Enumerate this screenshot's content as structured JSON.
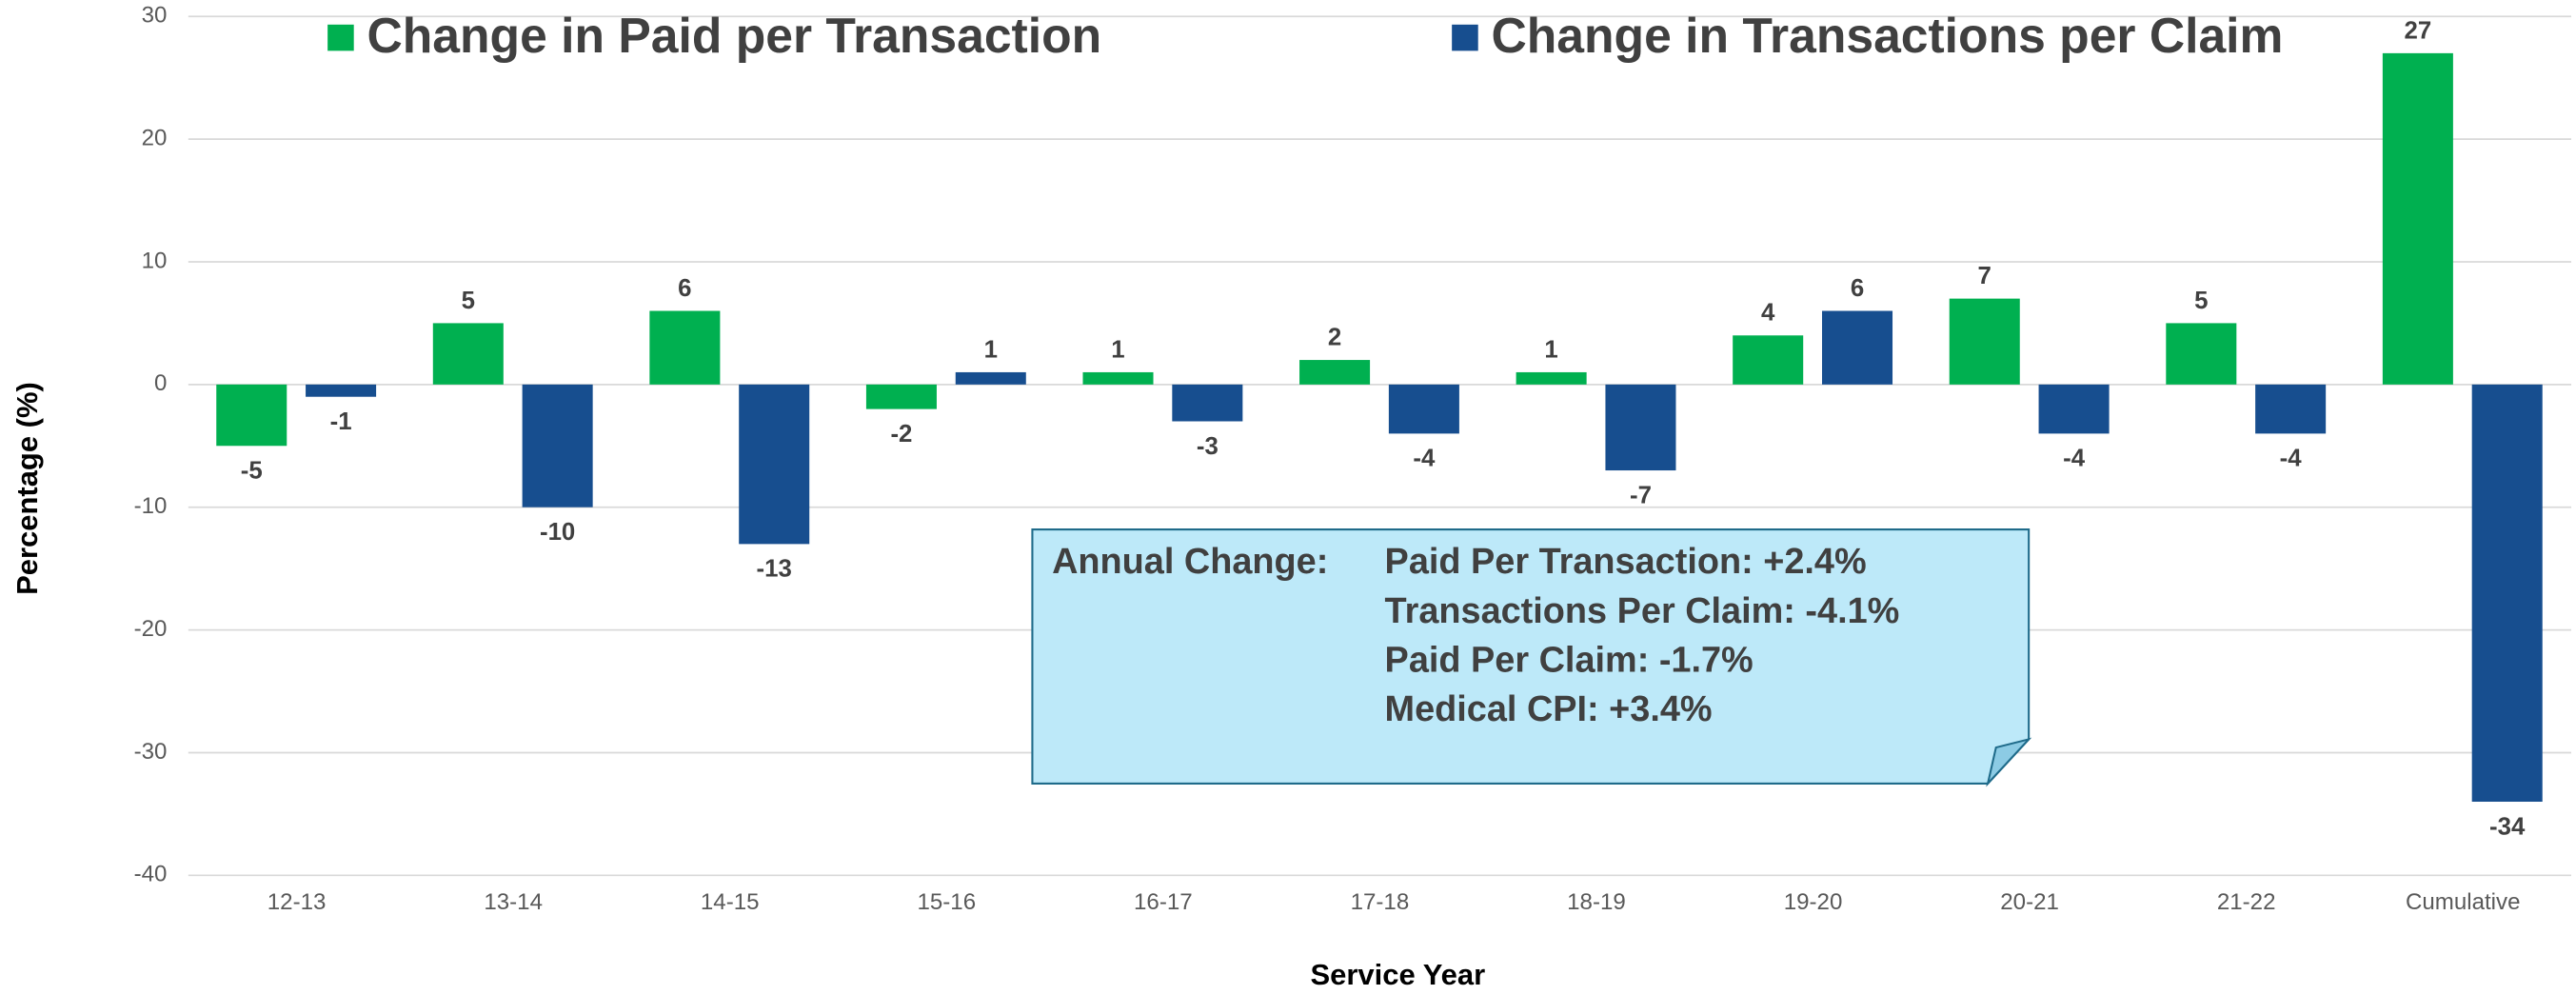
{
  "chart_data": {
    "type": "bar",
    "categories": [
      "12-13",
      "13-14",
      "14-15",
      "15-16",
      "16-17",
      "17-18",
      "18-19",
      "19-20",
      "20-21",
      "21-22",
      "Cumulative"
    ],
    "series": [
      {
        "name": "Change in Paid per Transaction",
        "color": "#00b050",
        "values": [
          -5,
          5,
          6,
          -2,
          1,
          2,
          1,
          4,
          7,
          5,
          27
        ]
      },
      {
        "name": "Change in Transactions per Claim",
        "color": "#174e8f",
        "values": [
          -1,
          -10,
          -13,
          1,
          -3,
          -4,
          -7,
          6,
          -4,
          -4,
          -34
        ]
      }
    ],
    "ylim": [
      -40,
      30
    ],
    "yticks": [
      -40,
      -30,
      -20,
      -10,
      0,
      10,
      20,
      30
    ],
    "grid": true,
    "y_label": "Percentage (%)",
    "x_label": "Service Year",
    "annotation": {
      "label": "Annual Change:",
      "lines": [
        "Paid Per Transaction: +2.4%",
        "Transactions Per Claim: -4.1%",
        "Paid Per Claim: -1.7%",
        "Medical CPI: +3.4%"
      ]
    }
  }
}
